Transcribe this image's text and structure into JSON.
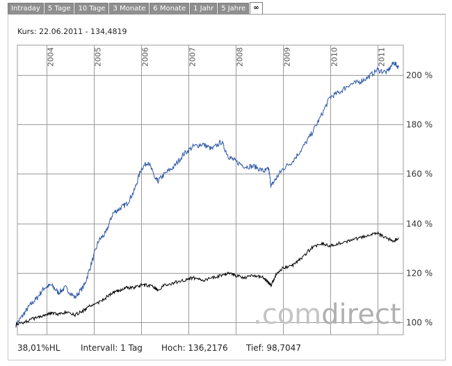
{
  "tabs": [
    {
      "label": "Intraday",
      "active": false
    },
    {
      "label": "5 Tage",
      "active": false
    },
    {
      "label": "10 Tage",
      "active": false
    },
    {
      "label": "3 Monate",
      "active": false
    },
    {
      "label": "6 Monate",
      "active": false
    },
    {
      "label": "1 Jahr",
      "active": false
    },
    {
      "label": "5 Jahre",
      "active": false
    },
    {
      "label": "∞",
      "active": true
    }
  ],
  "header": {
    "kurs": "Kurs: 22.06.2011 - 134,4819"
  },
  "footer": {
    "performance": "38,01%HL",
    "intervall": "Intervall: 1 Tag",
    "hoch": "Hoch: 136,2176",
    "tief": "Tief: 98,7047"
  },
  "watermark": {
    "part1": ".com",
    "part2": "direct"
  },
  "colors": {
    "series_blue": "#2a55a5",
    "series_black": "#000000",
    "grid": "#9a9a9a"
  },
  "chart_data": {
    "type": "line",
    "ylim": [
      95,
      212
    ],
    "xlim": [
      2003.35,
      2011.55
    ],
    "grid": true,
    "ytick_values": [
      100,
      120,
      140,
      160,
      180,
      200
    ],
    "ytick_labels": [
      "100 %",
      "120 %",
      "140 %",
      "160 %",
      "180 %",
      "200 %"
    ],
    "xtick_values": [
      2004,
      2005,
      2006,
      2007,
      2008,
      2009,
      2010,
      2011
    ],
    "xtick_labels": [
      "2004",
      "2005",
      "2006",
      "2007",
      "2008",
      "2009",
      "2010",
      "2011"
    ],
    "series": [
      {
        "color": "#2a55a5",
        "x": [
          2003.35,
          2003.5,
          2003.65,
          2003.8,
          2003.95,
          2004.1,
          2004.25,
          2004.4,
          2004.6,
          2004.8,
          2004.95,
          2005.1,
          2005.25,
          2005.4,
          2005.55,
          2005.7,
          2005.85,
          2006.0,
          2006.15,
          2006.3,
          2006.35,
          2006.5,
          2006.7,
          2006.9,
          2007.1,
          2007.3,
          2007.5,
          2007.7,
          2007.85,
          2008.0,
          2008.2,
          2008.4,
          2008.6,
          2008.7,
          2008.75,
          2008.85,
          2009.0,
          2009.2,
          2009.4,
          2009.6,
          2009.8,
          2010.0,
          2010.2,
          2010.4,
          2010.6,
          2010.8,
          2011.0,
          2011.2,
          2011.35,
          2011.45
        ],
        "y": [
          99,
          103,
          107,
          110,
          114,
          115,
          112,
          114,
          110,
          115,
          124,
          133,
          136,
          144,
          146,
          148,
          153,
          162,
          165,
          158,
          157,
          160,
          163,
          168,
          171,
          172,
          170,
          173,
          167,
          165,
          163,
          163,
          161,
          162,
          155,
          158,
          162,
          165,
          170,
          176,
          183,
          191,
          193,
          196,
          197,
          199,
          202,
          201,
          205,
          203
        ]
      },
      {
        "color": "#000000",
        "x": [
          2003.35,
          2003.5,
          2003.65,
          2003.8,
          2003.95,
          2004.1,
          2004.25,
          2004.4,
          2004.6,
          2004.8,
          2004.95,
          2005.1,
          2005.25,
          2005.4,
          2005.55,
          2005.7,
          2005.85,
          2006.0,
          2006.15,
          2006.3,
          2006.35,
          2006.5,
          2006.7,
          2006.9,
          2007.1,
          2007.3,
          2007.5,
          2007.7,
          2007.85,
          2008.0,
          2008.2,
          2008.4,
          2008.6,
          2008.7,
          2008.75,
          2008.85,
          2009.0,
          2009.2,
          2009.4,
          2009.6,
          2009.8,
          2010.0,
          2010.2,
          2010.4,
          2010.6,
          2010.8,
          2011.0,
          2011.2,
          2011.35,
          2011.45
        ],
        "y": [
          99,
          100,
          101,
          102,
          103,
          104,
          103,
          104,
          103,
          105,
          107,
          108,
          110,
          112,
          113,
          114,
          114,
          115,
          115,
          114,
          113,
          115,
          116,
          117,
          118,
          117,
          118,
          119,
          120,
          119,
          118,
          119,
          118,
          116,
          115,
          119,
          122,
          123,
          126,
          130,
          132,
          131,
          132,
          133,
          134,
          135,
          136,
          134,
          133,
          134
        ]
      }
    ]
  }
}
